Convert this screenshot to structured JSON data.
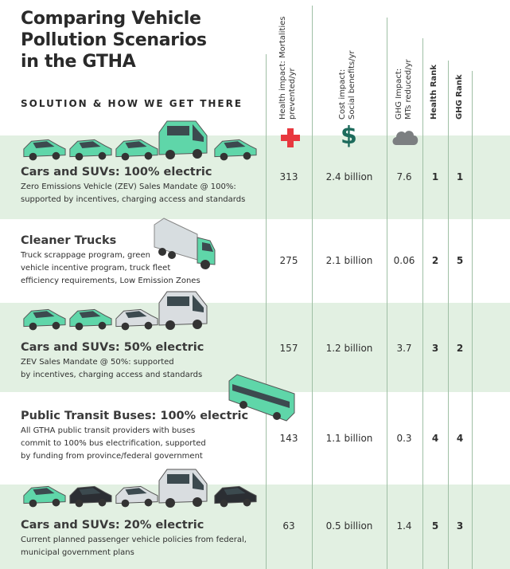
{
  "title_lines": [
    "Comparing Vehicle",
    "Pollution Scenarios",
    "in the GTHA"
  ],
  "subtitle": "SOLUTION & HOW WE GET THERE",
  "colors": {
    "band": "#e2f0e2",
    "electric_vehicle": "#5fd6a9",
    "gas_vehicle_silver": "#d9dde0",
    "gas_vehicle_black": "#2b2e33",
    "health_icon": "#e8383f",
    "cost_icon": "#1d6b5c",
    "ghg_icon": "#7c7f81"
  },
  "icons": {
    "health": "red-cross-icon",
    "cost": "dollar-sign-icon",
    "ghg": "cloud-icon"
  },
  "chart_data": {
    "type": "table",
    "columns": [
      "Health impact: Mortalities prevented/yr",
      "Cost impact: Social benefits/yr",
      "GHG Impact: MTs reduced/yr",
      "Health Rank",
      "GHG Rank"
    ],
    "header_lines": [
      [
        "Health impact: Mortalities",
        "prevented/yr"
      ],
      [
        "Cost impact:",
        "Social benefits/yr"
      ],
      [
        "GHG Impact:",
        "MTs reduced/yr"
      ],
      [
        "Health Rank"
      ],
      [
        "GHG Rank"
      ]
    ],
    "rows": [
      {
        "title": "Cars and SUVs: 100% electric",
        "desc": [
          "Zero Emissions Vehicle (ZEV) Sales Mandate @ 100%:",
          "supported by incentives, charging access and standards"
        ],
        "values": [
          "313",
          "2.4 billion",
          "7.6",
          "1",
          "1"
        ],
        "vehicles": [
          "ev",
          "ev",
          "ev",
          "ev-van",
          "ev"
        ]
      },
      {
        "title": "Cleaner Trucks",
        "desc": [
          "Truck scrappage program, green",
          "vehicle incentive program, truck fleet",
          "efficiency requirements, Low Emission Zones"
        ],
        "values": [
          "275",
          "2.1 billion",
          "0.06",
          "2",
          "5"
        ],
        "vehicles": [
          "truck"
        ]
      },
      {
        "title": "Cars and SUVs: 50% electric",
        "desc": [
          "ZEV Sales Mandate @ 50%: supported",
          "by incentives, charging access and standards"
        ],
        "values": [
          "157",
          "1.2 billion",
          "3.7",
          "3",
          "2"
        ],
        "vehicles": [
          "ev",
          "ev",
          "silver",
          "silver-van"
        ]
      },
      {
        "title": "Public Transit Buses: 100% electric",
        "desc": [
          "All GTHA public transit providers with buses",
          "commit to 100% bus electrification, supported",
          "by funding from province/federal government"
        ],
        "values": [
          "143",
          "1.1 billion",
          "0.3",
          "4",
          "4"
        ],
        "vehicles": [
          "bus"
        ]
      },
      {
        "title": "Cars and SUVs: 20% electric",
        "desc": [
          "Current planned  passenger vehicle policies from federal,",
          "municipal government plans"
        ],
        "values": [
          "63",
          "0.5 billion",
          "1.4",
          "5",
          "3"
        ],
        "vehicles": [
          "ev",
          "black",
          "silver",
          "silver-van",
          "black"
        ]
      }
    ]
  }
}
